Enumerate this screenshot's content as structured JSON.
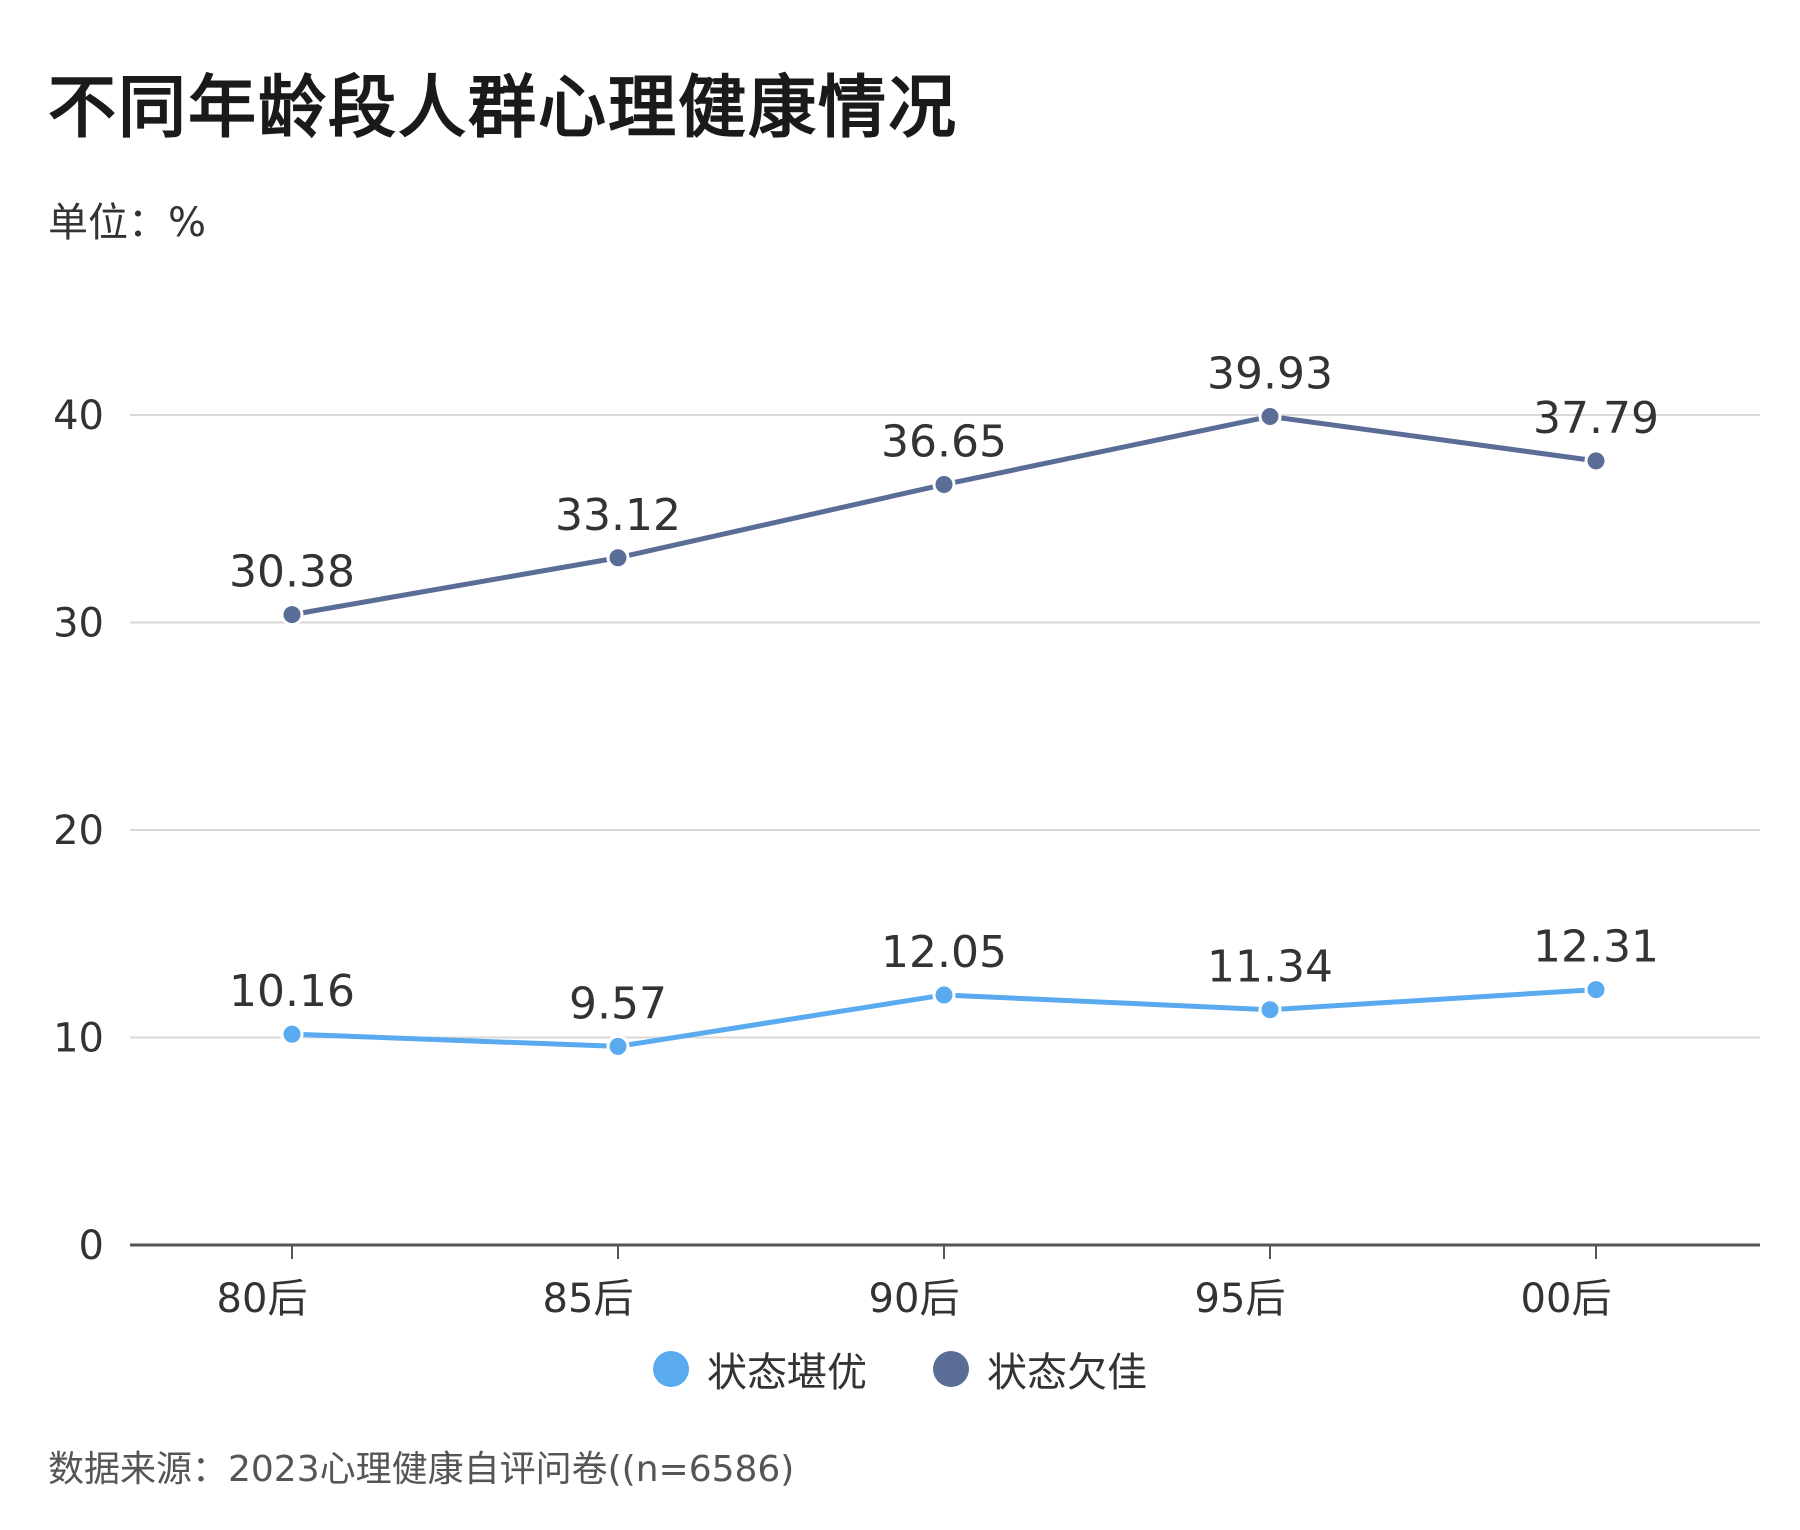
{
  "title": "不同年龄段人群心理健康情况",
  "unit": "单位：%",
  "source": "数据来源：2023心理健康自评问卷((n=6586)",
  "chart_data": {
    "type": "line",
    "categories": [
      "80后",
      "85后",
      "90后",
      "95后",
      "00后"
    ],
    "ylim": [
      0,
      40
    ],
    "yticks": [
      0,
      10,
      20,
      30,
      40
    ],
    "grid": true,
    "legend_placement": "bottom-center",
    "series": [
      {
        "name": "状态堪优",
        "color": "#5aaaf0",
        "values": [
          10.16,
          9.57,
          12.05,
          11.34,
          12.31
        ],
        "labels": [
          "10.16",
          "9.57",
          "12.05",
          "11.34",
          "12.31"
        ]
      },
      {
        "name": "状态欠佳",
        "color": "#5a6d96",
        "values": [
          30.38,
          33.12,
          36.65,
          39.93,
          37.79
        ],
        "labels": [
          "30.38",
          "33.12",
          "36.65",
          "39.93",
          "37.79"
        ]
      }
    ]
  }
}
